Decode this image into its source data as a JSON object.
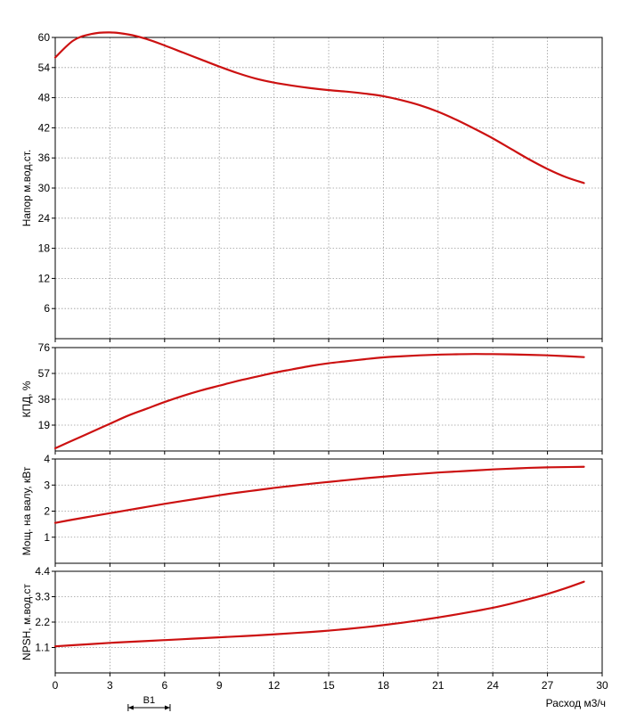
{
  "chart_data": [
    {
      "type": "line",
      "ylabel": "Напор м.вод.ст.",
      "xlim": [
        0,
        30
      ],
      "ylim": [
        0,
        60
      ],
      "yticks": [
        6,
        12,
        18,
        24,
        30,
        36,
        42,
        48,
        54,
        60
      ],
      "grid": true,
      "series": [
        {
          "color": "#cc1111",
          "x": [
            0,
            1,
            2,
            3,
            4,
            5,
            6,
            7,
            8,
            9,
            10,
            11,
            12,
            13,
            14,
            15,
            16,
            17,
            18,
            19,
            20,
            21,
            22,
            23,
            24,
            25,
            26,
            27,
            28,
            29
          ],
          "y": [
            56.0,
            59.4,
            60.7,
            61.0,
            60.6,
            59.7,
            58.4,
            57.0,
            55.6,
            54.2,
            52.9,
            51.8,
            51.0,
            50.4,
            49.9,
            49.5,
            49.2,
            48.8,
            48.3,
            47.5,
            46.5,
            45.2,
            43.6,
            41.8,
            39.9,
            37.8,
            35.7,
            33.8,
            32.2,
            31.0
          ]
        }
      ]
    },
    {
      "type": "line",
      "ylabel": "КПД, %",
      "xlim": [
        0,
        30
      ],
      "ylim": [
        0,
        76
      ],
      "yticks": [
        19,
        38,
        57,
        76
      ],
      "grid": true,
      "series": [
        {
          "color": "#cc1111",
          "x": [
            0,
            1,
            2,
            3,
            4,
            5,
            6,
            7,
            8,
            9,
            10,
            11,
            12,
            13,
            14,
            15,
            16,
            17,
            18,
            19,
            20,
            21,
            22,
            23,
            24,
            25,
            26,
            27,
            28,
            29
          ],
          "y": [
            2,
            8,
            14,
            20,
            26,
            31,
            36,
            40.5,
            44.5,
            48,
            51.5,
            54.5,
            57.5,
            60,
            62.5,
            64.5,
            66,
            67.5,
            68.8,
            69.6,
            70.3,
            70.8,
            71.1,
            71.3,
            71.2,
            71.0,
            70.7,
            70.3,
            69.7,
            69.0
          ]
        }
      ]
    },
    {
      "type": "line",
      "ylabel": "Мощ. на валу, кВт",
      "xlim": [
        0,
        30
      ],
      "ylim": [
        0,
        4
      ],
      "yticks": [
        1,
        2,
        3,
        4
      ],
      "grid": true,
      "series": [
        {
          "color": "#cc1111",
          "x": [
            0,
            1,
            2,
            3,
            4,
            5,
            6,
            7,
            8,
            9,
            10,
            11,
            12,
            13,
            14,
            15,
            16,
            17,
            18,
            19,
            20,
            21,
            22,
            23,
            24,
            25,
            26,
            27,
            28,
            29
          ],
          "y": [
            1.55,
            1.68,
            1.8,
            1.92,
            2.04,
            2.16,
            2.28,
            2.39,
            2.5,
            2.61,
            2.71,
            2.8,
            2.89,
            2.97,
            3.05,
            3.12,
            3.19,
            3.26,
            3.32,
            3.38,
            3.43,
            3.48,
            3.52,
            3.56,
            3.6,
            3.63,
            3.66,
            3.68,
            3.69,
            3.7
          ]
        }
      ]
    },
    {
      "type": "line",
      "ylabel": "NPSH, м.вод.ст",
      "xlabel": "Расход м3/ч",
      "xlim": [
        0,
        30
      ],
      "ylim": [
        0,
        4.4
      ],
      "yticks": [
        1.1,
        2.2,
        3.3,
        4.4
      ],
      "xticks": [
        0,
        3,
        6,
        9,
        12,
        15,
        18,
        21,
        24,
        27,
        30
      ],
      "grid": true,
      "series": [
        {
          "color": "#cc1111",
          "x": [
            0,
            1,
            2,
            3,
            4,
            5,
            6,
            7,
            8,
            9,
            10,
            11,
            12,
            13,
            14,
            15,
            16,
            17,
            18,
            19,
            20,
            21,
            22,
            23,
            24,
            25,
            26,
            27,
            28,
            29
          ],
          "y": [
            1.15,
            1.2,
            1.25,
            1.3,
            1.34,
            1.38,
            1.42,
            1.46,
            1.5,
            1.54,
            1.58,
            1.62,
            1.67,
            1.72,
            1.77,
            1.83,
            1.9,
            1.98,
            2.07,
            2.17,
            2.28,
            2.4,
            2.53,
            2.67,
            2.82,
            3.0,
            3.2,
            3.42,
            3.67,
            3.95
          ]
        }
      ]
    }
  ],
  "range_marker": {
    "label": "B1",
    "x_start": 4,
    "x_end": 6.3
  }
}
